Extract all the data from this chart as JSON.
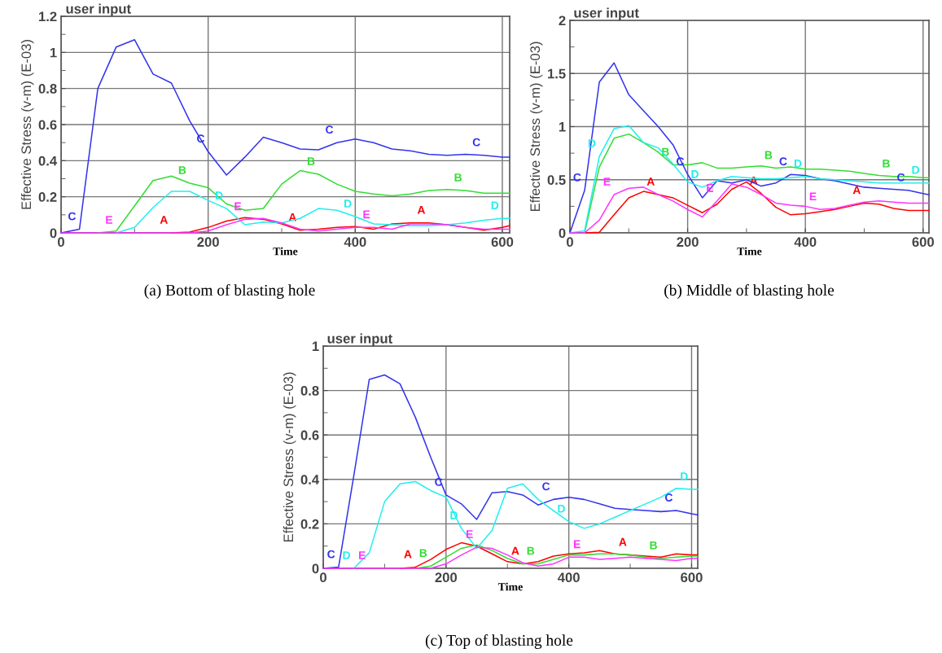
{
  "chart_data": [
    {
      "type": "line",
      "title": "user input",
      "xlabel": "Time",
      "ylabel": "Effective Stress (v-m) (E-03)",
      "annotations": [
        "(a) Bottom of blasting hole"
      ],
      "grid": true,
      "legend": false,
      "marker": "none",
      "line_style": "solid",
      "xlim": [
        0,
        610
      ],
      "xticks": [
        0,
        {
          "value": 100,
          "label": null
        },
        200,
        {
          "value": 300,
          "label": null
        },
        400,
        {
          "value": 500,
          "label": null
        },
        600
      ],
      "ylim": [
        0,
        1.2
      ],
      "yticks": [
        0,
        {
          "value": 0.1,
          "label": null
        },
        0.2,
        {
          "value": 0.3,
          "label": null
        },
        0.4,
        {
          "value": 0.5,
          "label": null
        },
        0.6,
        {
          "value": 0.7,
          "label": null
        },
        0.8,
        {
          "value": 0.9,
          "label": null
        },
        1,
        {
          "value": 1.1,
          "label": null
        },
        1.2
      ],
      "x": [
        0,
        25,
        50,
        75,
        100,
        125,
        150,
        175,
        200,
        225,
        250,
        275,
        300,
        325,
        350,
        375,
        400,
        425,
        450,
        475,
        500,
        525,
        550,
        575,
        600,
        610
      ],
      "series": [
        {
          "name": "A",
          "color": "#ff0000",
          "values": [
            null,
            null,
            null,
            null,
            null,
            null,
            0,
            0.005,
            0.03,
            0.065,
            0.085,
            0.075,
            0.05,
            0.015,
            0.02,
            0.03,
            0.035,
            0.02,
            0.05,
            0.055,
            0.055,
            0.045,
            0.03,
            0.015,
            0.03,
            0.04
          ]
        },
        {
          "name": "B",
          "color": "#33dd33",
          "values": [
            null,
            null,
            0,
            0.01,
            0.15,
            0.29,
            0.315,
            0.275,
            0.25,
            0.16,
            0.125,
            0.135,
            0.27,
            0.345,
            0.325,
            0.27,
            0.23,
            0.215,
            0.205,
            0.215,
            0.235,
            0.24,
            0.235,
            0.22,
            0.22,
            0.22
          ]
        },
        {
          "name": "C",
          "color": "#3333ee",
          "values": [
            0,
            0.02,
            0.8,
            1.03,
            1.07,
            0.88,
            0.83,
            0.62,
            0.45,
            0.32,
            0.42,
            0.53,
            0.5,
            0.465,
            0.46,
            0.5,
            0.52,
            0.5,
            0.465,
            0.455,
            0.435,
            0.43,
            0.435,
            0.43,
            0.42,
            0.42
          ]
        },
        {
          "name": "D",
          "color": "#22eeee",
          "values": [
            null,
            null,
            null,
            0,
            0.03,
            0.14,
            0.23,
            0.23,
            0.18,
            0.135,
            0.045,
            0.06,
            0.055,
            0.08,
            0.135,
            0.125,
            0.09,
            0.05,
            0.045,
            0.04,
            0.04,
            0.045,
            0.055,
            0.07,
            0.08,
            0.08
          ]
        },
        {
          "name": "E",
          "color": "#ff33ff",
          "values": [
            0,
            0,
            0,
            0,
            0,
            0,
            0,
            0,
            0.01,
            0.045,
            0.075,
            0.08,
            0.055,
            0.02,
            0.01,
            0.02,
            0.03,
            0.03,
            0.02,
            0.05,
            0.05,
            0.045,
            0.03,
            0.02,
            0.02,
            0.02
          ]
        }
      ]
    },
    {
      "type": "line",
      "title": "user input",
      "xlabel": "Time",
      "ylabel": "Effective Stress (v-m) (E-03)",
      "annotations": [
        "(b) Middle of blasting hole"
      ],
      "grid": true,
      "legend": false,
      "marker": "none",
      "line_style": "solid",
      "xlim": [
        0,
        610
      ],
      "xticks": [
        0,
        {
          "value": 100,
          "label": null
        },
        200,
        {
          "value": 300,
          "label": null
        },
        400,
        {
          "value": 500,
          "label": null
        },
        600
      ],
      "ylim": [
        0,
        2
      ],
      "yticks": [
        0,
        {
          "value": 0.25,
          "label": null
        },
        0.5,
        {
          "value": 0.75,
          "label": null
        },
        1,
        {
          "value": 1.25,
          "label": null
        },
        1.5,
        {
          "value": 1.75,
          "label": null
        },
        2
      ],
      "x": [
        0,
        25,
        50,
        75,
        100,
        125,
        150,
        175,
        200,
        225,
        250,
        275,
        300,
        325,
        350,
        375,
        400,
        425,
        450,
        475,
        500,
        525,
        550,
        575,
        600,
        610
      ],
      "series": [
        {
          "name": "A",
          "color": "#ff0000",
          "values": [
            null,
            0,
            0.005,
            0.17,
            0.33,
            0.39,
            0.36,
            0.33,
            0.26,
            0.19,
            0.27,
            0.41,
            0.48,
            0.37,
            0.24,
            0.17,
            0.18,
            0.2,
            0.22,
            0.25,
            0.28,
            0.27,
            0.23,
            0.21,
            0.21,
            0.21
          ]
        },
        {
          "name": "B",
          "color": "#33dd33",
          "values": [
            null,
            0,
            0.62,
            0.89,
            0.93,
            0.85,
            0.76,
            0.64,
            0.64,
            0.66,
            0.61,
            0.61,
            0.62,
            0.63,
            0.61,
            0.62,
            0.6,
            0.6,
            0.59,
            0.58,
            0.56,
            0.54,
            0.53,
            0.53,
            0.52,
            0.52
          ]
        },
        {
          "name": "C",
          "color": "#3333ee",
          "values": [
            0,
            0.4,
            1.42,
            1.6,
            1.3,
            1.15,
            1.0,
            0.83,
            0.55,
            0.33,
            0.49,
            0.47,
            0.5,
            0.44,
            0.47,
            0.55,
            0.54,
            0.51,
            0.49,
            0.46,
            0.43,
            0.42,
            0.41,
            0.4,
            0.37,
            0.36
          ]
        },
        {
          "name": "D",
          "color": "#22eeee",
          "values": [
            0,
            0.02,
            0.72,
            0.98,
            1.01,
            0.85,
            0.8,
            0.65,
            0.48,
            0.43,
            0.49,
            0.53,
            0.52,
            0.51,
            0.51,
            0.52,
            0.53,
            0.51,
            0.5,
            0.49,
            0.48,
            0.47,
            0.47,
            0.47,
            0.47,
            0.47
          ]
        },
        {
          "name": "E",
          "color": "#ff33ff",
          "values": [
            0,
            0,
            0.12,
            0.36,
            0.42,
            0.43,
            0.36,
            0.3,
            0.22,
            0.15,
            0.3,
            0.46,
            0.43,
            0.36,
            0.28,
            0.26,
            0.25,
            0.22,
            0.23,
            0.26,
            0.29,
            0.3,
            0.29,
            0.28,
            0.28,
            0.28
          ]
        }
      ]
    },
    {
      "type": "line",
      "title": "user input",
      "xlabel": "Time",
      "ylabel": "Effective Stress (v-m) (E-03)",
      "annotations": [
        "(c) Top of blasting hole"
      ],
      "grid": true,
      "legend": false,
      "marker": "none",
      "line_style": "solid",
      "xlim": [
        0,
        610
      ],
      "xticks": [
        0,
        {
          "value": 100,
          "label": null
        },
        200,
        {
          "value": 300,
          "label": null
        },
        400,
        {
          "value": 500,
          "label": null
        },
        600
      ],
      "ylim": [
        0,
        1
      ],
      "yticks": [
        0,
        {
          "value": 0.1,
          "label": null
        },
        0.2,
        {
          "value": 0.3,
          "label": null
        },
        0.4,
        {
          "value": 0.5,
          "label": null
        },
        0.6,
        {
          "value": 0.7,
          "label": null
        },
        0.8,
        {
          "value": 0.9,
          "label": null
        },
        1
      ],
      "x": [
        0,
        25,
        50,
        75,
        100,
        125,
        150,
        175,
        200,
        225,
        250,
        275,
        300,
        325,
        350,
        375,
        400,
        425,
        450,
        475,
        500,
        525,
        550,
        575,
        600,
        610
      ],
      "series": [
        {
          "name": "A",
          "color": "#ff0000",
          "values": [
            null,
            null,
            null,
            null,
            null,
            0,
            0.005,
            0.04,
            0.085,
            0.115,
            0.1,
            0.065,
            0.03,
            0.02,
            0.03,
            0.055,
            0.065,
            0.07,
            0.08,
            0.065,
            0.06,
            0.055,
            0.05,
            0.065,
            0.06,
            0.06
          ]
        },
        {
          "name": "B",
          "color": "#33dd33",
          "values": [
            null,
            null,
            null,
            null,
            null,
            null,
            0,
            0.01,
            0.05,
            0.09,
            0.105,
            0.08,
            0.045,
            0.02,
            0.02,
            0.04,
            0.06,
            0.06,
            0.065,
            0.065,
            0.06,
            0.05,
            0.045,
            0.05,
            0.055,
            0.055
          ]
        },
        {
          "name": "C",
          "color": "#3333ee",
          "values": [
            0,
            0.005,
            0.42,
            0.85,
            0.87,
            0.83,
            0.68,
            0.5,
            0.33,
            0.29,
            0.22,
            0.34,
            0.345,
            0.33,
            0.285,
            0.31,
            0.32,
            0.31,
            0.29,
            0.27,
            0.265,
            0.26,
            0.255,
            0.26,
            0.245,
            0.24
          ]
        },
        {
          "name": "D",
          "color": "#22eeee",
          "values": [
            null,
            null,
            0,
            0.07,
            0.3,
            0.38,
            0.39,
            0.35,
            0.32,
            0.18,
            0.09,
            0.17,
            0.36,
            0.38,
            0.31,
            0.26,
            0.21,
            0.18,
            0.2,
            0.23,
            0.26,
            0.29,
            0.32,
            0.36,
            0.355,
            0.355
          ]
        },
        {
          "name": "E",
          "color": "#ff33ff",
          "values": [
            0,
            0,
            0,
            0,
            0,
            0,
            0,
            0,
            0.02,
            0.06,
            0.095,
            0.09,
            0.06,
            0.025,
            0.01,
            0.02,
            0.05,
            0.05,
            0.04,
            0.045,
            0.05,
            0.045,
            0.04,
            0.035,
            0.045,
            0.045
          ]
        }
      ]
    }
  ]
}
